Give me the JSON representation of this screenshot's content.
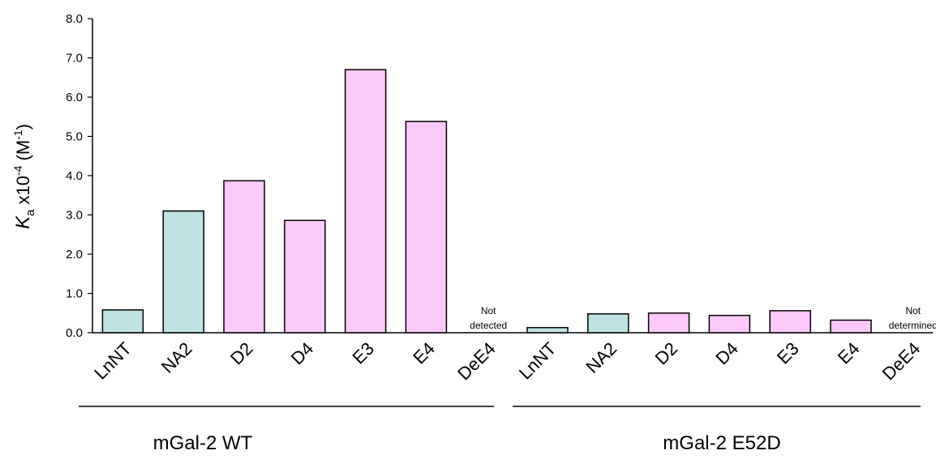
{
  "chart_data": {
    "type": "bar",
    "ylabel": {
      "symbol": "K",
      "sub": "a",
      "mid": " x10",
      "exp": "-4",
      "unit_pre": " (M",
      "unit_exp": "-1",
      "unit_post": ")"
    },
    "ylim": [
      0,
      8.0
    ],
    "yticks": [
      "0.0",
      "1.0",
      "2.0",
      "3.0",
      "4.0",
      "5.0",
      "6.0",
      "7.0",
      "8.0"
    ],
    "grid": false,
    "legend": "none",
    "colors": {
      "teal": "#bfe3e3",
      "pink": "#fdc9fb",
      "edge": "#000000"
    },
    "groups": [
      {
        "label": "mGal-2 WT",
        "categories": [
          "LnNT",
          "NA2",
          "D2",
          "D4",
          "E3",
          "E4",
          "DeE4"
        ],
        "values": [
          0.58,
          3.1,
          3.87,
          2.86,
          6.7,
          5.38,
          null
        ],
        "colors": [
          "teal",
          "teal",
          "pink",
          "pink",
          "pink",
          "pink",
          null
        ],
        "annotation": {
          "index": 6,
          "lines": [
            "Not",
            "detected"
          ]
        }
      },
      {
        "label": "mGal-2 E52D",
        "categories": [
          "LnNT",
          "NA2",
          "D2",
          "D4",
          "E3",
          "E4",
          "DeE4"
        ],
        "values": [
          0.13,
          0.48,
          0.5,
          0.44,
          0.56,
          0.32,
          null
        ],
        "colors": [
          "teal",
          "teal",
          "pink",
          "pink",
          "pink",
          "pink",
          null
        ],
        "annotation": {
          "index": 6,
          "lines": [
            "Not",
            "determined"
          ]
        }
      }
    ]
  }
}
